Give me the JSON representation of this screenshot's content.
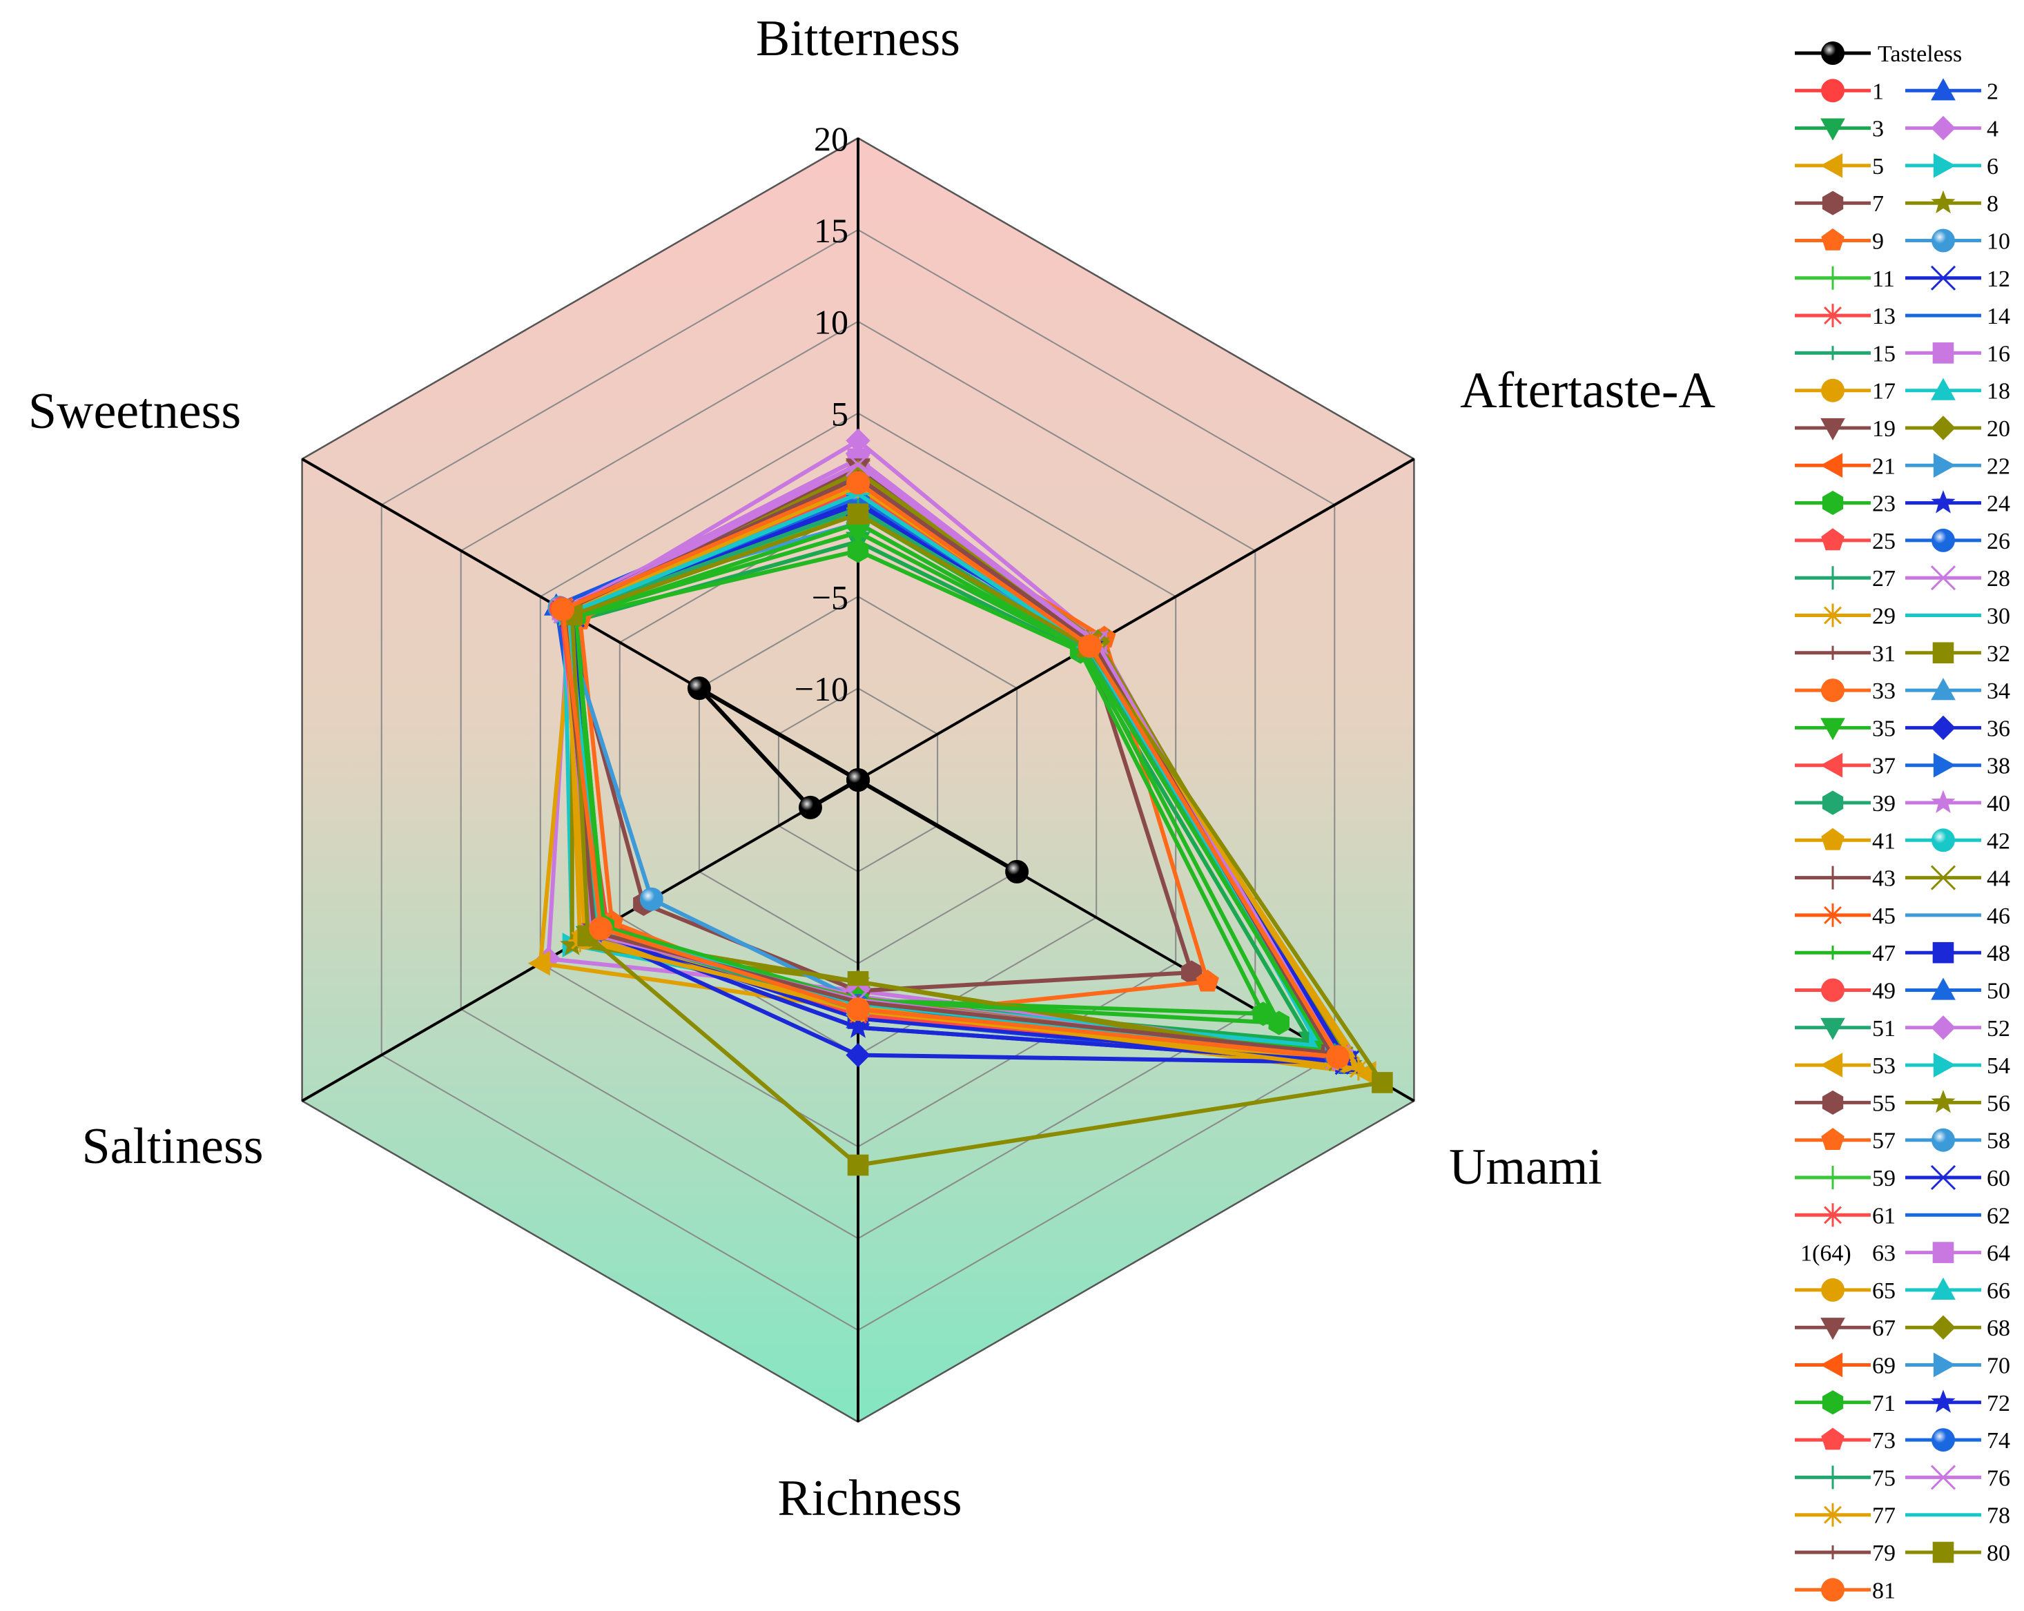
{
  "chart_data": {
    "type": "radar",
    "title": "",
    "axes": [
      "Bitterness",
      "Aftertaste-A",
      "Umami",
      "Richness",
      "Saltiness",
      "Sweetness"
    ],
    "r_ticks": [
      20,
      15,
      10,
      5,
      -5,
      -10
    ],
    "rlim": [
      -15,
      20
    ],
    "grid": true,
    "background_gradient": [
      "#f8c8c4",
      "#84e6c2"
    ],
    "legend_position": "right",
    "series": [
      {
        "name": "Tasteless",
        "color": "#000000",
        "marker": "sphere",
        "values": [
          -15,
          -15,
          -5,
          -15,
          -12,
          -5
        ]
      },
      {
        "name": "1",
        "color": "#ff4040",
        "marker": "circle",
        "values": [
          0.8,
          -0.5,
          15.5,
          -2.5,
          0.8,
          3.7
        ]
      },
      {
        "name": "2",
        "color": "#1a56e0",
        "marker": "triangle-up",
        "values": [
          1.5,
          -0.3,
          16.0,
          -2.0,
          1.0,
          4.0
        ]
      },
      {
        "name": "3",
        "color": "#1aa850",
        "marker": "triangle-down",
        "values": [
          -2.0,
          -1.0,
          13.5,
          -3.0,
          2.0,
          2.5
        ]
      },
      {
        "name": "4",
        "color": "#c878e0",
        "marker": "diamond",
        "values": [
          3.5,
          0.2,
          14.5,
          -3.5,
          4.5,
          3.2
        ]
      },
      {
        "name": "5",
        "color": "#e0a000",
        "marker": "triangle-left",
        "values": [
          1.0,
          -0.5,
          17.0,
          -2.5,
          5.0,
          3.0
        ]
      },
      {
        "name": "6",
        "color": "#18c8c8",
        "marker": "triangle-right",
        "values": [
          2.0,
          0.0,
          14.0,
          -3.0,
          3.0,
          3.5
        ]
      },
      {
        "name": "7",
        "color": "#8b4a4a",
        "marker": "hexagon",
        "values": [
          2.0,
          -0.5,
          6.0,
          -3.5,
          -1.5,
          3.5
        ]
      },
      {
        "name": "8",
        "color": "#8b8b00",
        "marker": "star",
        "values": [
          1.5,
          0.0,
          16.0,
          -4.0,
          3.0,
          3.0
        ]
      },
      {
        "name": "9",
        "color": "#ff6a1a",
        "marker": "pentagon",
        "values": [
          1.0,
          0.5,
          7.0,
          -2.0,
          0.5,
          2.5
        ]
      },
      {
        "name": "10",
        "color": "#3c9ad8",
        "marker": "sphere",
        "values": [
          -1.0,
          -0.8,
          15.0,
          -3.0,
          -2.0,
          3.8
        ]
      },
      {
        "name": "11",
        "color": "#3ac83a",
        "marker": "plus",
        "values": [
          -0.5,
          -0.5,
          15.2,
          -2.5,
          1.5,
          3.2
        ]
      },
      {
        "name": "12",
        "color": "#1a28d8",
        "marker": "cross",
        "values": [
          0.0,
          -0.2,
          15.8,
          -3.0,
          1.8,
          3.0
        ]
      },
      {
        "name": "13",
        "color": "#ff4a4a",
        "marker": "asterisk",
        "values": [
          0.5,
          -0.6,
          15.3,
          -2.2,
          1.2,
          3.5
        ]
      },
      {
        "name": "14",
        "color": "#1a68e0",
        "marker": "hline",
        "values": [
          0.3,
          -0.4,
          15.0,
          -2.8,
          1.4,
          3.2
        ]
      },
      {
        "name": "15",
        "color": "#20a870",
        "marker": "vline",
        "values": [
          -0.3,
          -0.7,
          14.8,
          -2.6,
          1.6,
          3.0
        ]
      },
      {
        "name": "16",
        "color": "#c878e0",
        "marker": "square",
        "values": [
          2.5,
          0.0,
          15.5,
          -3.2,
          2.0,
          3.6
        ]
      },
      {
        "name": "17",
        "color": "#e0a000",
        "marker": "circle",
        "values": [
          1.2,
          -0.3,
          15.6,
          -2.4,
          2.2,
          3.4
        ]
      },
      {
        "name": "18",
        "color": "#18c8c8",
        "marker": "triangle-up",
        "values": [
          0.8,
          -0.5,
          15.1,
          -2.7,
          1.3,
          3.3
        ]
      },
      {
        "name": "19",
        "color": "#8b4a4a",
        "marker": "triangle-down",
        "values": [
          2.0,
          -0.2,
          14.9,
          -2.9,
          1.7,
          3.5
        ]
      },
      {
        "name": "20",
        "color": "#8b8b00",
        "marker": "diamond",
        "values": [
          1.8,
          0.1,
          15.4,
          -3.1,
          1.9,
          3.1
        ]
      },
      {
        "name": "21",
        "color": "#ff5a10",
        "marker": "triangle-left",
        "values": [
          1.0,
          -0.4,
          15.2,
          -2.5,
          1.1,
          3.6
        ]
      },
      {
        "name": "22",
        "color": "#3c9ad8",
        "marker": "triangle-right",
        "values": [
          0.5,
          -0.6,
          15.0,
          -2.8,
          1.5,
          3.4
        ]
      },
      {
        "name": "23",
        "color": "#22b822",
        "marker": "hexagon",
        "values": [
          -2.5,
          -1.0,
          10.5,
          -3.0,
          1.0,
          2.8
        ]
      },
      {
        "name": "24",
        "color": "#1a28d8",
        "marker": "star",
        "values": [
          0.2,
          -0.3,
          15.7,
          -1.5,
          1.6,
          3.0
        ]
      },
      {
        "name": "25",
        "color": "#ff4a4a",
        "marker": "pentagon",
        "values": [
          0.8,
          -0.5,
          15.3,
          -2.6,
          1.4,
          3.7
        ]
      },
      {
        "name": "26",
        "color": "#1a68e0",
        "marker": "sphere",
        "values": [
          0.4,
          -0.4,
          15.1,
          -2.7,
          1.3,
          3.5
        ]
      },
      {
        "name": "27",
        "color": "#20a870",
        "marker": "plus",
        "values": [
          -0.2,
          -0.6,
          15.0,
          -2.5,
          1.5,
          3.2
        ]
      },
      {
        "name": "28",
        "color": "#c878e0",
        "marker": "cross",
        "values": [
          2.2,
          0.0,
          15.2,
          -3.0,
          1.8,
          3.4
        ]
      },
      {
        "name": "29",
        "color": "#e0a000",
        "marker": "asterisk",
        "values": [
          1.0,
          -0.3,
          15.4,
          -2.6,
          1.7,
          3.3
        ]
      },
      {
        "name": "30",
        "color": "#18c8c8",
        "marker": "hline",
        "values": [
          0.6,
          -0.5,
          15.0,
          -2.8,
          1.3,
          3.2
        ]
      },
      {
        "name": "31",
        "color": "#8b4a4a",
        "marker": "vline",
        "values": [
          1.5,
          -0.2,
          14.8,
          -2.9,
          1.6,
          3.5
        ]
      },
      {
        "name": "32",
        "color": "#8b8b00",
        "marker": "square",
        "values": [
          -0.5,
          -0.5,
          15.5,
          -4.0,
          2.0,
          3.0
        ]
      },
      {
        "name": "33",
        "color": "#ff6a1a",
        "marker": "circle",
        "values": [
          1.2,
          -0.4,
          15.2,
          -2.5,
          1.2,
          3.6
        ]
      },
      {
        "name": "34",
        "color": "#3c9ad8",
        "marker": "triangle-up",
        "values": [
          0.5,
          -0.6,
          15.1,
          -2.7,
          1.4,
          3.3
        ]
      },
      {
        "name": "35",
        "color": "#22b822",
        "marker": "triangle-down",
        "values": [
          -1.5,
          -0.8,
          14.5,
          -2.6,
          1.2,
          2.9
        ]
      },
      {
        "name": "36",
        "color": "#1a28d8",
        "marker": "diamond",
        "values": [
          0.3,
          -0.3,
          15.8,
          0.0,
          1.7,
          3.1
        ]
      },
      {
        "name": "37",
        "color": "#ff4a4a",
        "marker": "triangle-left",
        "values": [
          0.8,
          -0.5,
          15.3,
          -2.4,
          1.4,
          3.6
        ]
      },
      {
        "name": "38",
        "color": "#1a68e0",
        "marker": "triangle-right",
        "values": [
          0.4,
          -0.4,
          15.0,
          -2.7,
          1.3,
          3.4
        ]
      },
      {
        "name": "39",
        "color": "#20a870",
        "marker": "hexagon",
        "values": [
          -0.2,
          -0.6,
          14.9,
          -2.5,
          1.5,
          3.2
        ]
      },
      {
        "name": "40",
        "color": "#c878e0",
        "marker": "star",
        "values": [
          2.5,
          0.0,
          15.2,
          -3.0,
          1.8,
          3.4
        ]
      },
      {
        "name": "41",
        "color": "#e0a000",
        "marker": "pentagon",
        "values": [
          1.0,
          -0.3,
          15.4,
          -2.6,
          1.7,
          3.3
        ]
      },
      {
        "name": "42",
        "color": "#18c8c8",
        "marker": "sphere",
        "values": [
          0.6,
          -0.5,
          15.0,
          -2.8,
          1.3,
          3.2
        ]
      },
      {
        "name": "43",
        "color": "#8b4a4a",
        "marker": "plus",
        "values": [
          1.5,
          -0.2,
          14.8,
          -2.9,
          1.6,
          3.5
        ]
      },
      {
        "name": "44",
        "color": "#8b8b00",
        "marker": "cross",
        "values": [
          1.8,
          0.1,
          15.4,
          -3.1,
          1.9,
          3.1
        ]
      },
      {
        "name": "45",
        "color": "#ff5a10",
        "marker": "asterisk",
        "values": [
          1.0,
          -0.4,
          15.2,
          -2.5,
          1.1,
          3.6
        ]
      },
      {
        "name": "46",
        "color": "#3c9ad8",
        "marker": "hline",
        "values": [
          0.5,
          -0.6,
          15.0,
          -2.8,
          1.5,
          3.4
        ]
      },
      {
        "name": "47",
        "color": "#22b822",
        "marker": "vline",
        "values": [
          -0.5,
          -0.7,
          14.7,
          -2.6,
          1.3,
          3.0
        ]
      },
      {
        "name": "48",
        "color": "#1a28d8",
        "marker": "square",
        "values": [
          0.2,
          -0.3,
          15.7,
          -2.0,
          1.6,
          3.0
        ]
      },
      {
        "name": "49",
        "color": "#ff4a4a",
        "marker": "circle",
        "values": [
          0.8,
          -0.5,
          15.3,
          -2.6,
          1.4,
          3.7
        ]
      },
      {
        "name": "50",
        "color": "#1a68e0",
        "marker": "triangle-up",
        "values": [
          0.4,
          -0.4,
          15.1,
          -2.7,
          1.3,
          3.5
        ]
      },
      {
        "name": "51",
        "color": "#20a870",
        "marker": "triangle-down",
        "values": [
          -0.2,
          -0.6,
          15.0,
          -2.5,
          1.5,
          3.2
        ]
      },
      {
        "name": "52",
        "color": "#c878e0",
        "marker": "diamond",
        "values": [
          2.2,
          0.0,
          15.2,
          -3.0,
          1.8,
          3.4
        ]
      },
      {
        "name": "53",
        "color": "#e0a000",
        "marker": "triangle-left",
        "values": [
          1.0,
          -0.3,
          15.4,
          -2.6,
          1.7,
          3.3
        ]
      },
      {
        "name": "54",
        "color": "#18c8c8",
        "marker": "triangle-right",
        "values": [
          0.6,
          -0.5,
          15.0,
          -2.8,
          1.3,
          3.2
        ]
      },
      {
        "name": "55",
        "color": "#8b4a4a",
        "marker": "hexagon",
        "values": [
          1.5,
          -0.2,
          14.8,
          -2.9,
          1.6,
          3.5
        ]
      },
      {
        "name": "56",
        "color": "#8b8b00",
        "marker": "star",
        "values": [
          1.8,
          0.1,
          15.4,
          -3.1,
          1.9,
          3.1
        ]
      },
      {
        "name": "57",
        "color": "#ff6a1a",
        "marker": "pentagon",
        "values": [
          1.2,
          -0.4,
          15.2,
          -2.5,
          1.2,
          3.6
        ]
      },
      {
        "name": "58",
        "color": "#3c9ad8",
        "marker": "sphere",
        "values": [
          0.5,
          -0.6,
          15.1,
          -2.7,
          1.4,
          3.3
        ]
      },
      {
        "name": "59",
        "color": "#3ac83a",
        "marker": "plus",
        "values": [
          -0.5,
          -0.5,
          15.2,
          -2.5,
          1.5,
          3.2
        ]
      },
      {
        "name": "60",
        "color": "#1a28d8",
        "marker": "cross",
        "values": [
          0.0,
          -0.2,
          15.8,
          -3.0,
          1.8,
          3.0
        ]
      },
      {
        "name": "61",
        "color": "#ff4a4a",
        "marker": "asterisk",
        "values": [
          0.5,
          -0.6,
          15.3,
          -2.2,
          1.2,
          3.5
        ]
      },
      {
        "name": "62",
        "color": "#1a68e0",
        "marker": "hline",
        "values": [
          0.3,
          -0.4,
          15.0,
          -2.8,
          1.4,
          3.2
        ]
      },
      {
        "name": "63",
        "prefix": "1(64)",
        "color": "#ffffff",
        "marker": "none",
        "values": [
          0.0,
          -0.5,
          15.0,
          -2.7,
          1.4,
          3.3
        ]
      },
      {
        "name": "64",
        "color": "#c878e0",
        "marker": "square",
        "values": [
          2.5,
          0.0,
          15.5,
          -3.2,
          2.0,
          3.6
        ]
      },
      {
        "name": "65",
        "color": "#e0a000",
        "marker": "circle",
        "values": [
          1.2,
          -0.3,
          15.6,
          -2.4,
          2.2,
          3.4
        ]
      },
      {
        "name": "66",
        "color": "#18c8c8",
        "marker": "triangle-up",
        "values": [
          0.8,
          -0.5,
          15.1,
          -2.7,
          1.3,
          3.3
        ]
      },
      {
        "name": "67",
        "color": "#8b4a4a",
        "marker": "triangle-down",
        "values": [
          2.0,
          -0.2,
          14.9,
          -2.9,
          1.7,
          3.5
        ]
      },
      {
        "name": "68",
        "color": "#8b8b00",
        "marker": "diamond",
        "values": [
          1.8,
          0.1,
          15.4,
          -3.1,
          1.9,
          3.1
        ]
      },
      {
        "name": "69",
        "color": "#ff5a10",
        "marker": "triangle-left",
        "values": [
          1.0,
          -0.4,
          15.2,
          -2.5,
          1.1,
          3.6
        ]
      },
      {
        "name": "70",
        "color": "#3c9ad8",
        "marker": "triangle-right",
        "values": [
          0.5,
          -0.6,
          15.0,
          -2.8,
          1.5,
          3.4
        ]
      },
      {
        "name": "71",
        "color": "#22b822",
        "marker": "hexagon",
        "values": [
          -1.0,
          -0.8,
          11.5,
          -3.0,
          1.0,
          2.8
        ]
      },
      {
        "name": "72",
        "color": "#1a28d8",
        "marker": "star",
        "values": [
          0.2,
          -0.3,
          15.7,
          -1.5,
          1.6,
          3.0
        ]
      },
      {
        "name": "73",
        "color": "#ff4a4a",
        "marker": "pentagon",
        "values": [
          0.8,
          -0.5,
          15.3,
          -2.6,
          1.4,
          3.7
        ]
      },
      {
        "name": "74",
        "color": "#1a68e0",
        "marker": "sphere",
        "values": [
          0.4,
          -0.4,
          15.1,
          -2.7,
          1.3,
          3.5
        ]
      },
      {
        "name": "75",
        "color": "#20a870",
        "marker": "plus",
        "values": [
          -0.2,
          -0.6,
          15.0,
          -2.5,
          1.5,
          3.2
        ]
      },
      {
        "name": "76",
        "color": "#c878e0",
        "marker": "cross",
        "values": [
          2.2,
          0.0,
          15.2,
          -3.0,
          1.8,
          3.4
        ]
      },
      {
        "name": "77",
        "color": "#e0a000",
        "marker": "asterisk",
        "values": [
          1.0,
          -0.3,
          16.5,
          -2.6,
          2.5,
          3.3
        ]
      },
      {
        "name": "78",
        "color": "#18c8c8",
        "marker": "hline",
        "values": [
          0.6,
          -0.5,
          15.0,
          -2.8,
          1.3,
          3.2
        ]
      },
      {
        "name": "79",
        "color": "#8b4a4a",
        "marker": "vline",
        "values": [
          1.5,
          -0.2,
          14.8,
          -2.9,
          1.6,
          3.5
        ]
      },
      {
        "name": "80",
        "color": "#8b8b00",
        "marker": "square",
        "values": [
          -0.5,
          -0.5,
          18.0,
          6.0,
          2.0,
          3.0
        ]
      },
      {
        "name": "81",
        "color": "#ff6a1a",
        "marker": "circle",
        "values": [
          1.2,
          -0.4,
          15.2,
          -2.5,
          1.2,
          3.6
        ]
      }
    ]
  }
}
